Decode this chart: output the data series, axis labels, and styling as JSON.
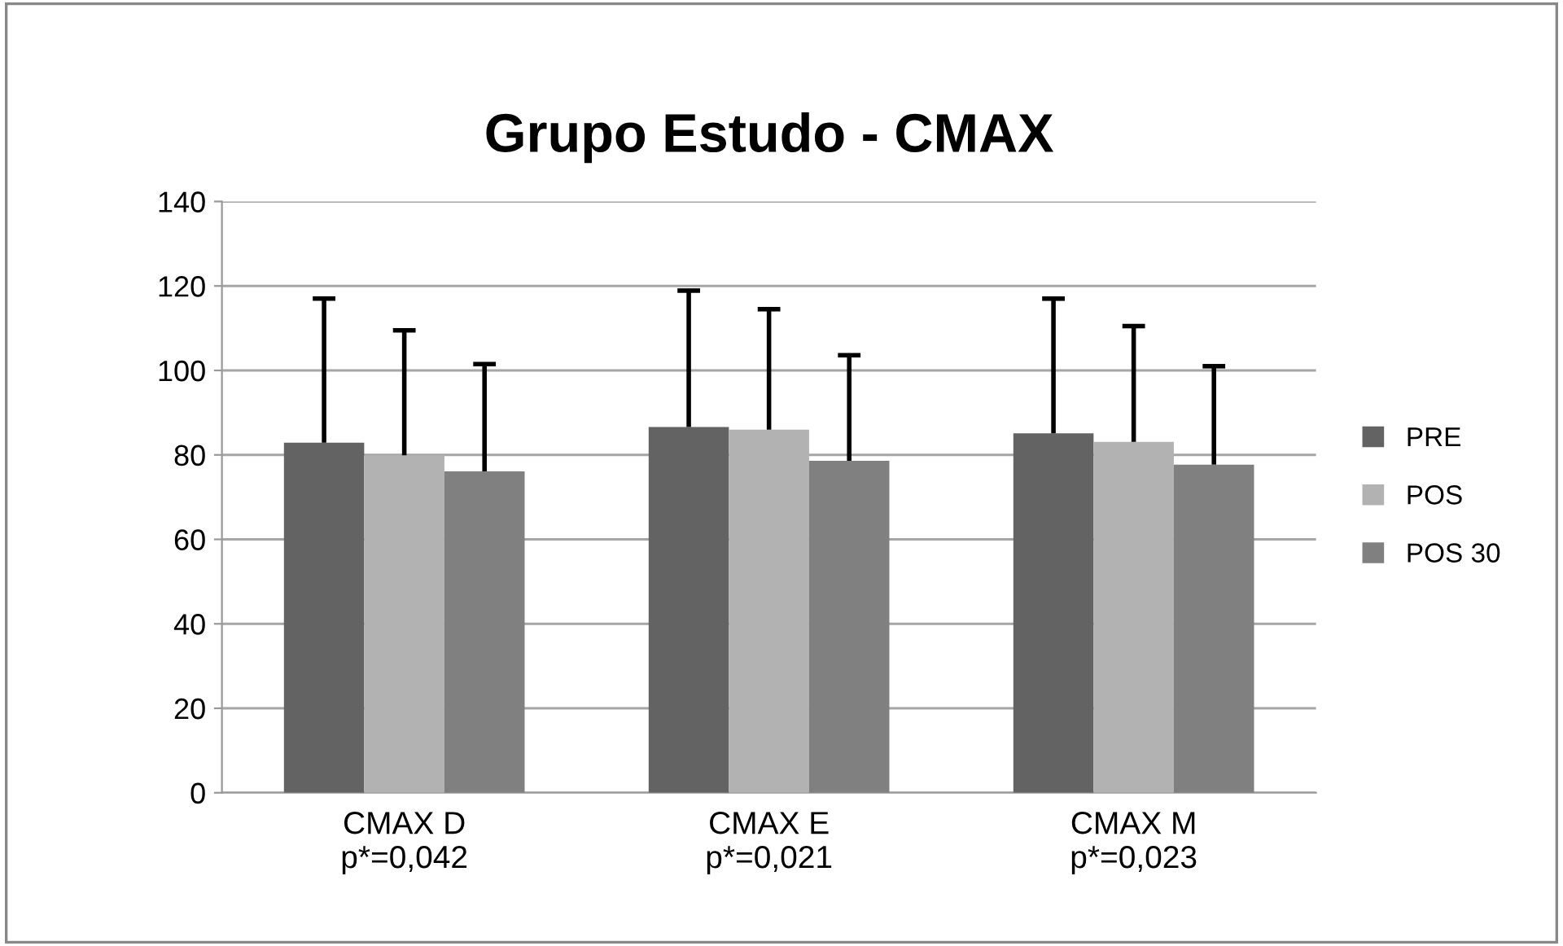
{
  "chart_data": {
    "type": "bar",
    "title": "Grupo Estudo - CMAX",
    "categories": [
      "CMAX D\np*=0,042",
      "CMAX E\np*=0,021",
      "CMAX M\np*=0,023"
    ],
    "series": [
      {
        "name": "PRE",
        "color": "#636363",
        "values": [
          82.9,
          86.6,
          85.1
        ],
        "errors": [
          [
            82.9,
            117.0
          ],
          [
            86.6,
            118.9
          ],
          [
            85.1,
            117.0
          ]
        ]
      },
      {
        "name": "POS",
        "color": "#b2b2b2",
        "values": [
          79.9,
          86.0,
          83.1
        ],
        "errors": [
          [
            79.9,
            109.5
          ],
          [
            86.0,
            114.5
          ],
          [
            83.1,
            110.5
          ]
        ]
      },
      {
        "name": "POS 30",
        "color": "#808080",
        "values": [
          76.1,
          78.6,
          77.7
        ],
        "errors": [
          [
            76.1,
            101.5
          ],
          [
            78.6,
            103.6
          ],
          [
            77.7,
            101.0
          ]
        ]
      }
    ],
    "ylim": [
      0,
      140
    ],
    "yticks": [
      0,
      20,
      40,
      60,
      80,
      100,
      120,
      140
    ],
    "grid": "y",
    "legend": "right"
  }
}
